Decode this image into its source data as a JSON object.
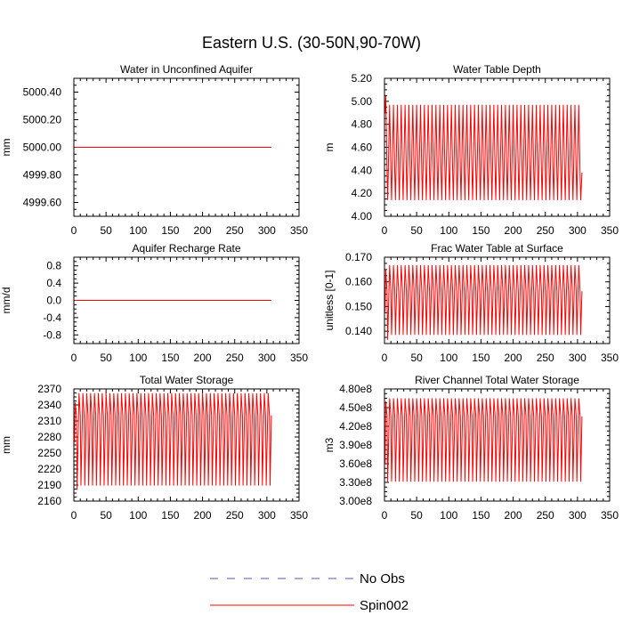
{
  "title": "Eastern U.S. (30-50N,90-70W)",
  "legend": [
    {
      "label": "No Obs",
      "color": "#5555bb",
      "dash": true
    },
    {
      "label": "Spin002",
      "color": "#ff0000",
      "dash": false
    }
  ],
  "chart_data": [
    {
      "type": "line",
      "title": "Water in Unconfined Aquifer",
      "ylabel": "mm",
      "xlim": [
        0,
        350
      ],
      "ylim": [
        4999.5,
        5000.5
      ],
      "xticks": [
        "0",
        "50",
        "100",
        "150",
        "200",
        "250",
        "300",
        "350"
      ],
      "yticks": [
        "5000.40",
        "5000.20",
        "5000.00",
        "4999.80",
        "4999.60"
      ],
      "ytick_values": [
        5000.4,
        5000.2,
        5000.0,
        4999.8,
        4999.6
      ],
      "series": [
        {
          "name": "Spin002",
          "mode": "constant",
          "value": 5000.0,
          "x_start": 1,
          "x_end": 307
        }
      ]
    },
    {
      "type": "line",
      "title": "Water Table Depth",
      "ylabel": "m",
      "xlim": [
        0,
        350
      ],
      "ylim": [
        4.0,
        5.2
      ],
      "xticks": [
        "0",
        "50",
        "100",
        "150",
        "200",
        "250",
        "300",
        "350"
      ],
      "yticks": [
        "5.20",
        "5.00",
        "4.80",
        "4.60",
        "4.40",
        "4.20",
        "4.00"
      ],
      "ytick_values": [
        5.2,
        5.0,
        4.8,
        4.6,
        4.4,
        4.2,
        4.0
      ],
      "series": [
        {
          "name": "Spin002",
          "mode": "osc",
          "start": 4.9,
          "first_max": 5.05,
          "max": 4.97,
          "min": 4.14,
          "mid": 4.38,
          "period": 6,
          "x_start": 1,
          "x_end": 307
        }
      ]
    },
    {
      "type": "line",
      "title": "Aquifer Recharge Rate",
      "ylabel": "mm/d",
      "xlim": [
        0,
        350
      ],
      "ylim": [
        -1.0,
        1.0
      ],
      "xticks": [
        "0",
        "50",
        "100",
        "150",
        "200",
        "250",
        "300",
        "350"
      ],
      "yticks": [
        "0.8",
        "0.4",
        "0.0",
        "-0.4",
        "-0.8"
      ],
      "ytick_values": [
        0.8,
        0.4,
        0.0,
        -0.4,
        -0.8
      ],
      "series": [
        {
          "name": "Spin002",
          "mode": "constant",
          "value": 0.0,
          "x_start": 1,
          "x_end": 307
        }
      ]
    },
    {
      "type": "line",
      "title": "Frac Water Table at Surface",
      "ylabel": "unitless [0-1]",
      "xlim": [
        0,
        350
      ],
      "ylim": [
        0.135,
        0.17
      ],
      "xticks": [
        "0",
        "50",
        "100",
        "150",
        "200",
        "250",
        "300",
        "350"
      ],
      "yticks": [
        "0.170",
        "0.160",
        "0.150",
        "0.140"
      ],
      "ytick_values": [
        0.17,
        0.16,
        0.15,
        0.14
      ],
      "series": [
        {
          "name": "Spin002",
          "mode": "osc",
          "start": 0.148,
          "first_max": 0.165,
          "first_min": 0.1365,
          "max": 0.1668,
          "min": 0.1385,
          "mid": 0.1562,
          "period": 6,
          "x_start": 1,
          "x_end": 307
        }
      ]
    },
    {
      "type": "line",
      "title": "Total Water Storage",
      "ylabel": "mm",
      "xlim": [
        0,
        350
      ],
      "ylim": [
        2160,
        2370
      ],
      "xticks": [
        "0",
        "50",
        "100",
        "150",
        "200",
        "250",
        "300",
        "350"
      ],
      "yticks": [
        "2370",
        "2340",
        "2310",
        "2280",
        "2250",
        "2220",
        "2190",
        "2160"
      ],
      "ytick_values": [
        2370,
        2340,
        2310,
        2280,
        2250,
        2220,
        2190,
        2160
      ],
      "series": [
        {
          "name": "Spin002",
          "mode": "osc",
          "start": 2270,
          "first_max": 2345,
          "first_min": 2181,
          "max": 2362,
          "min": 2189,
          "mid": 2320,
          "period": 6,
          "x_start": 1,
          "x_end": 307
        }
      ]
    },
    {
      "type": "line",
      "title": "River Channel Total Water Storage",
      "ylabel": "m3",
      "xlim": [
        0,
        350
      ],
      "ylim": [
        300000000,
        480000000
      ],
      "xticks": [
        "0",
        "50",
        "100",
        "150",
        "200",
        "250",
        "300",
        "350"
      ],
      "yticks": [
        "4.80e8",
        "4.50e8",
        "4.20e8",
        "3.90e8",
        "3.60e8",
        "3.30e8",
        "3.00e8"
      ],
      "ytick_values": [
        480000000,
        450000000,
        420000000,
        390000000,
        360000000,
        330000000,
        300000000
      ],
      "series": [
        {
          "name": "Spin002",
          "mode": "osc",
          "start": 360000000,
          "first_max": 460000000,
          "first_min": 331000000,
          "max": 465000000,
          "min": 331000000,
          "mid": 436000000,
          "period": 6,
          "x_start": 1,
          "x_end": 307
        }
      ]
    }
  ]
}
